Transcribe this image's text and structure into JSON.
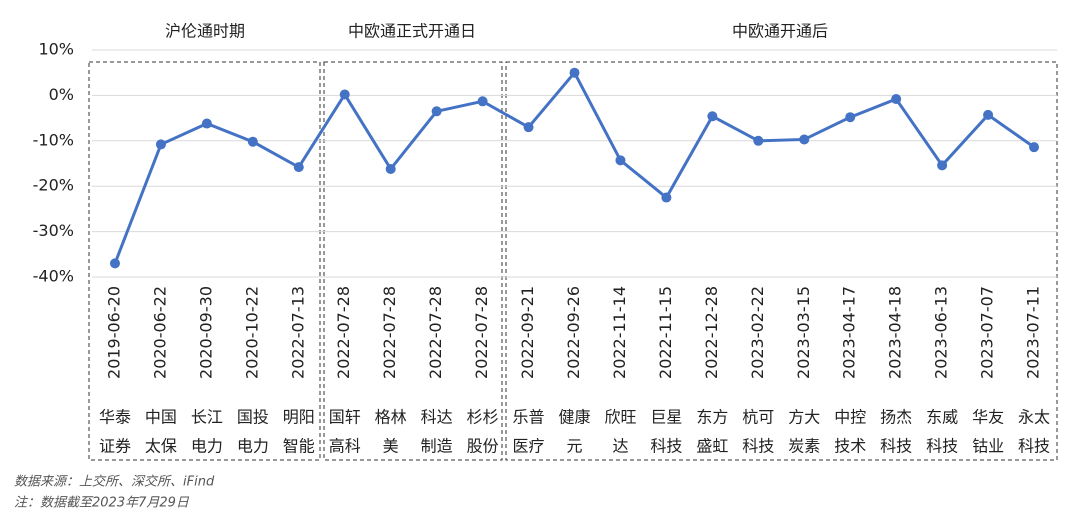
{
  "chart_data": {
    "type": "line",
    "group_labels": [
      "沪伦通时期",
      "中欧通正式开通日",
      "中欧通开通后"
    ],
    "categories": [
      "2019-06-20",
      "2020-06-22",
      "2020-09-30",
      "2020-10-22",
      "2022-07-13",
      "2022-07-28",
      "2022-07-28",
      "2022-07-28",
      "2022-07-28",
      "2022-09-21",
      "2022-09-26",
      "2022-11-14",
      "2022-11-15",
      "2022-12-28",
      "2023-02-22",
      "2023-03-15",
      "2023-04-17",
      "2023-04-18",
      "2023-06-13",
      "2023-07-07",
      "2023-07-11"
    ],
    "company_labels": [
      [
        "华泰",
        "证券"
      ],
      [
        "中国",
        "太保"
      ],
      [
        "长江",
        "电力"
      ],
      [
        "国投",
        "电力"
      ],
      [
        "明阳",
        "智能"
      ],
      [
        "国轩",
        "高科"
      ],
      [
        "格林",
        "美"
      ],
      [
        "科达",
        "制造"
      ],
      [
        "杉杉",
        "股份"
      ],
      [
        "乐普",
        "医疗"
      ],
      [
        "健康",
        "元"
      ],
      [
        "欣旺",
        "达"
      ],
      [
        "巨星",
        "科技"
      ],
      [
        "东方",
        "盛虹"
      ],
      [
        "杭可",
        "科技"
      ],
      [
        "方大",
        "炭素"
      ],
      [
        "中控",
        "技术"
      ],
      [
        "扬杰",
        "科技"
      ],
      [
        "东威",
        "科技"
      ],
      [
        "华友",
        "钴业"
      ],
      [
        "永太",
        "科技"
      ]
    ],
    "series": [
      {
        "color": "#4472c4",
        "values": [
          -37,
          -10.8,
          -6.2,
          -10.2,
          -15.8,
          0.2,
          -16.2,
          -3.5,
          -1.3,
          -7,
          5,
          -14.3,
          -22.5,
          -4.6,
          -10,
          -9.7,
          -4.8,
          -0.8,
          -15.4,
          -4.3,
          -11.4
        ]
      }
    ],
    "ylim": [
      -40,
      10
    ],
    "yticks": [
      {
        "value": -40,
        "label": "-40%"
      },
      {
        "value": -30,
        "label": "-30%"
      },
      {
        "value": -20,
        "label": "-20%"
      },
      {
        "value": -10,
        "label": "-10%"
      },
      {
        "value": 0,
        "label": "0%"
      },
      {
        "value": 10,
        "label": "10%"
      }
    ],
    "grid": true,
    "notes": [
      "数据来源：上交所、深交所、iFind",
      "注：数据截至2023年7月29日"
    ]
  }
}
